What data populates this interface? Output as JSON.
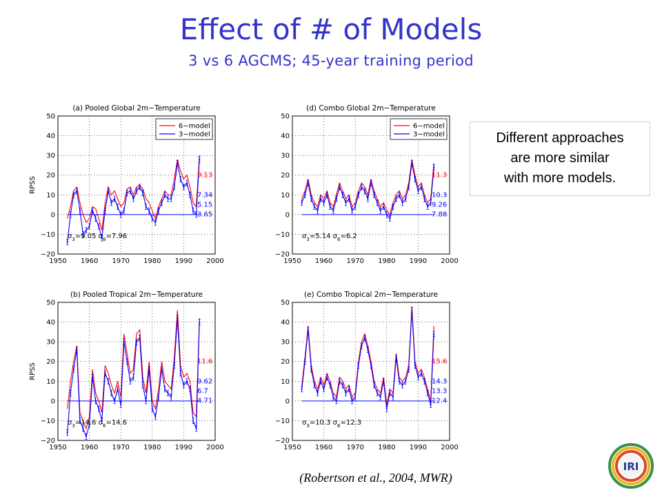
{
  "slide": {
    "title": "Effect of # of Models",
    "subtitle": "3 vs 6 AGCMS; 45-year training period",
    "note_lines": [
      "Different approaches",
      "are more similar",
      "with more models."
    ],
    "citation": "(Robertson et al., 2004, MWR)",
    "logo_text": "IRI"
  },
  "colors": {
    "title": "#3333cc",
    "six_model": "#ff0000",
    "three_model": "#0000ff"
  },
  "chart_data": [
    {
      "type": "line",
      "title": "(a) Pooled Global 2m−Temperature",
      "xlabel": "",
      "ylabel": "RPSS",
      "xlim": [
        1950,
        2000
      ],
      "ylim": [
        -20,
        50
      ],
      "xticks": [
        1950,
        1960,
        1970,
        1980,
        1990,
        2000
      ],
      "yticks": [
        -20,
        -10,
        0,
        10,
        20,
        30,
        40,
        50
      ],
      "ytick_labels": [
        "−20",
        "−10",
        "0",
        "10",
        "20",
        "30",
        "40",
        "50"
      ],
      "grid": true,
      "legend": {
        "placement": "top-right",
        "entries": [
          "6−model",
          "3−model"
        ]
      },
      "x": [
        1953,
        1954,
        1955,
        1956,
        1957,
        1958,
        1959,
        1960,
        1961,
        1962,
        1963,
        1964,
        1965,
        1966,
        1967,
        1968,
        1969,
        1970,
        1971,
        1972,
        1973,
        1974,
        1975,
        1976,
        1977,
        1978,
        1979,
        1980,
        1981,
        1982,
        1983,
        1984,
        1985,
        1986,
        1987,
        1988,
        1989,
        1990,
        1991,
        1992,
        1993,
        1994,
        1995
      ],
      "series": [
        {
          "name": "6−model",
          "values": [
            -2,
            4,
            12,
            14,
            6,
            0,
            -4,
            -2,
            4,
            3,
            -2,
            -8,
            6,
            14,
            10,
            12,
            8,
            4,
            6,
            13,
            14,
            10,
            14,
            15,
            13,
            8,
            6,
            2,
            -2,
            4,
            8,
            12,
            10,
            10,
            18,
            28,
            22,
            18,
            20,
            14,
            6,
            4,
            30
          ]
        },
        {
          "name": "3−model",
          "values": [
            -14,
            0,
            10,
            12,
            2,
            -10,
            -8,
            -6,
            2,
            -2,
            -6,
            -12,
            2,
            12,
            6,
            8,
            4,
            0,
            2,
            11,
            12,
            8,
            12,
            14,
            11,
            4,
            2,
            -2,
            -4,
            2,
            6,
            10,
            8,
            8,
            14,
            26,
            18,
            14,
            16,
            10,
            2,
            0,
            28
          ]
        }
      ],
      "annotations": {
        "six_value": "9.13",
        "three_values": [
          "7.34",
          "5.15",
          "3.65"
        ],
        "sigma_text": [
          "σ",
          "3",
          "=9.05  ",
          "σ",
          "6",
          "=7.96"
        ]
      }
    },
    {
      "type": "line",
      "title": "(d) Combo Global 2m−Temperature",
      "xlabel": "",
      "ylabel": "",
      "xlim": [
        1950,
        2000
      ],
      "ylim": [
        -20,
        50
      ],
      "xticks": [
        1950,
        1960,
        1970,
        1980,
        1990,
        2000
      ],
      "yticks": [
        -20,
        -10,
        0,
        10,
        20,
        30,
        40,
        50
      ],
      "ytick_labels": [
        "−20",
        "−10",
        "0",
        "10",
        "20",
        "30",
        "40",
        "50"
      ],
      "grid": true,
      "legend": {
        "placement": "top-right",
        "entries": [
          "6−model",
          "3−model"
        ]
      },
      "x": [
        1953,
        1954,
        1955,
        1956,
        1957,
        1958,
        1959,
        1960,
        1961,
        1962,
        1963,
        1964,
        1965,
        1966,
        1967,
        1968,
        1969,
        1970,
        1971,
        1972,
        1973,
        1974,
        1975,
        1976,
        1977,
        1978,
        1979,
        1980,
        1981,
        1982,
        1983,
        1984,
        1985,
        1986,
        1987,
        1988,
        1989,
        1990,
        1991,
        1992,
        1993,
        1994,
        1995
      ],
      "series": [
        {
          "name": "6−model",
          "values": [
            8,
            12,
            18,
            10,
            6,
            4,
            10,
            8,
            12,
            6,
            4,
            10,
            16,
            12,
            8,
            10,
            4,
            6,
            12,
            16,
            14,
            10,
            18,
            12,
            8,
            4,
            6,
            2,
            0,
            6,
            10,
            12,
            8,
            10,
            16,
            28,
            20,
            14,
            16,
            10,
            6,
            8,
            26
          ]
        },
        {
          "name": "3−model",
          "values": [
            6,
            10,
            16,
            8,
            4,
            2,
            8,
            6,
            10,
            4,
            2,
            8,
            14,
            10,
            6,
            8,
            2,
            4,
            10,
            14,
            12,
            8,
            16,
            10,
            6,
            2,
            4,
            0,
            -2,
            4,
            8,
            10,
            6,
            8,
            14,
            26,
            18,
            12,
            14,
            8,
            4,
            6,
            24
          ]
        }
      ],
      "annotations": {
        "six_value": "11.3",
        "three_values": [
          "10.3",
          "9.26",
          "7.88"
        ],
        "sigma_text": [
          "σ",
          "3",
          "=5.14  ",
          "σ",
          "6",
          "=6.2"
        ]
      }
    },
    {
      "type": "line",
      "title": "(b) Pooled Tropical 2m−Temperature",
      "xlabel": "",
      "ylabel": "RPSS",
      "xlim": [
        1950,
        2000
      ],
      "ylim": [
        -20,
        50
      ],
      "xticks": [
        1950,
        1960,
        1970,
        1980,
        1990,
        2000
      ],
      "yticks": [
        -20,
        -10,
        0,
        10,
        20,
        30,
        40,
        50
      ],
      "ytick_labels": [
        "−20",
        "−10",
        "0",
        "10",
        "20",
        "30",
        "40",
        "50"
      ],
      "grid": true,
      "legend": null,
      "x": [
        1953,
        1954,
        1955,
        1956,
        1957,
        1958,
        1959,
        1960,
        1961,
        1962,
        1963,
        1964,
        1965,
        1966,
        1967,
        1968,
        1969,
        1970,
        1971,
        1972,
        1973,
        1974,
        1975,
        1976,
        1977,
        1978,
        1979,
        1980,
        1981,
        1982,
        1983,
        1984,
        1985,
        1986,
        1987,
        1988,
        1989,
        1990,
        1991,
        1992,
        1993,
        1994,
        1995
      ],
      "series": [
        {
          "name": "6−model",
          "values": [
            -4,
            10,
            20,
            28,
            -6,
            -10,
            -14,
            -8,
            16,
            4,
            0,
            -6,
            18,
            14,
            8,
            4,
            10,
            2,
            34,
            24,
            14,
            16,
            34,
            36,
            12,
            4,
            20,
            0,
            -4,
            6,
            20,
            10,
            8,
            6,
            22,
            46,
            18,
            12,
            14,
            10,
            -6,
            -8,
            42
          ]
        },
        {
          "name": "3−model",
          "values": [
            -16,
            4,
            16,
            26,
            -10,
            -14,
            -18,
            -12,
            12,
            0,
            -4,
            -10,
            14,
            10,
            4,
            0,
            6,
            -2,
            30,
            20,
            10,
            12,
            30,
            32,
            8,
            0,
            16,
            -4,
            -8,
            2,
            16,
            6,
            4,
            2,
            18,
            42,
            14,
            8,
            10,
            6,
            -10,
            -14,
            40
          ]
        }
      ],
      "annotations": {
        "six_value": "11.6",
        "three_values": [
          "9.62",
          "6.7",
          "4.71"
        ],
        "sigma_text": [
          "σ",
          "3",
          "=14.6  ",
          "σ",
          "6",
          "=14.6"
        ]
      }
    },
    {
      "type": "line",
      "title": "(e) Combo Tropical 2m−Temperature",
      "xlabel": "",
      "ylabel": "",
      "xlim": [
        1950,
        2000
      ],
      "ylim": [
        -20,
        50
      ],
      "xticks": [
        1950,
        1960,
        1970,
        1980,
        1990,
        2000
      ],
      "yticks": [
        -20,
        -10,
        0,
        10,
        20,
        30,
        40,
        50
      ],
      "ytick_labels": [
        "−20",
        "−10",
        "0",
        "10",
        "20",
        "30",
        "40",
        "50"
      ],
      "grid": true,
      "legend": null,
      "x": [
        1953,
        1954,
        1955,
        1956,
        1957,
        1958,
        1959,
        1960,
        1961,
        1962,
        1963,
        1964,
        1965,
        1966,
        1967,
        1968,
        1969,
        1970,
        1971,
        1972,
        1973,
        1974,
        1975,
        1976,
        1977,
        1978,
        1979,
        1980,
        1981,
        1982,
        1983,
        1984,
        1985,
        1986,
        1987,
        1988,
        1989,
        1990,
        1991,
        1992,
        1993,
        1994,
        1995
      ],
      "series": [
        {
          "name": "6−model",
          "values": [
            8,
            22,
            38,
            18,
            10,
            6,
            12,
            8,
            14,
            10,
            4,
            2,
            12,
            10,
            6,
            8,
            2,
            4,
            20,
            30,
            34,
            28,
            20,
            10,
            6,
            4,
            12,
            -2,
            6,
            4,
            24,
            12,
            10,
            12,
            18,
            48,
            20,
            14,
            16,
            12,
            6,
            0,
            38
          ]
        },
        {
          "name": "3−model",
          "values": [
            6,
            20,
            36,
            16,
            8,
            4,
            10,
            6,
            12,
            8,
            2,
            0,
            10,
            8,
            4,
            6,
            0,
            2,
            18,
            28,
            32,
            26,
            18,
            8,
            4,
            2,
            10,
            -4,
            4,
            2,
            22,
            10,
            8,
            10,
            16,
            46,
            18,
            12,
            14,
            10,
            4,
            -2,
            34
          ]
        }
      ],
      "annotations": {
        "six_value": "15.6",
        "three_values": [
          "14.3",
          "13.3",
          "12.4"
        ],
        "sigma_text": [
          "σ",
          "3",
          "=10.3  ",
          "σ",
          "6",
          "=12.3"
        ]
      }
    }
  ]
}
